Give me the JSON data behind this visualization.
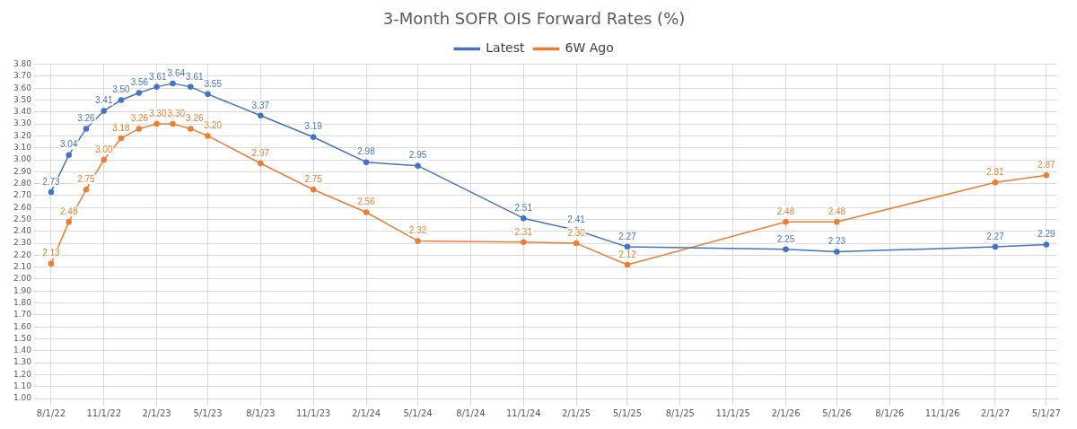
{
  "chart_data": {
    "type": "line",
    "title": "3-Month SOFR OIS Forward Rates (%)",
    "x": [
      "2022-08-01",
      "2022-09-01",
      "2022-10-01",
      "2022-11-01",
      "2022-12-01",
      "2023-01-01",
      "2023-02-01",
      "2023-03-01",
      "2023-04-01",
      "2023-05-01",
      "2023-08-01",
      "2023-11-01",
      "2024-02-01",
      "2024-05-01",
      "2024-11-01",
      "2025-02-01",
      "2025-05-01",
      "2026-02-01",
      "2026-05-01",
      "2027-02-01",
      "2027-05-01"
    ],
    "series": [
      {
        "name": "Latest",
        "color": "#4472c4",
        "values": [
          2.73,
          3.04,
          3.26,
          3.41,
          3.5,
          3.56,
          3.61,
          3.64,
          3.61,
          3.55,
          3.37,
          3.19,
          2.98,
          2.95,
          2.51,
          2.41,
          2.27,
          2.25,
          2.23,
          2.27,
          2.29
        ],
        "value_labels": [
          "2.73",
          "3.04",
          "3.26",
          "3.41",
          "3.50",
          "3.56",
          "3.61",
          "3.64",
          "3.61",
          "3.55",
          "3.37",
          "3.19",
          "2.98",
          "2.95",
          "2.51",
          "2.41",
          "2.27",
          "2.25",
          "2.23",
          "2.27",
          "2.29"
        ]
      },
      {
        "name": "6W Ago",
        "color": "#ed7d31",
        "values": [
          2.13,
          2.48,
          2.75,
          3.0,
          3.18,
          3.26,
          3.3,
          3.3,
          3.26,
          3.2,
          2.97,
          2.75,
          2.56,
          2.32,
          2.31,
          2.3,
          2.12,
          2.48,
          2.48,
          2.81,
          2.87
        ],
        "value_labels": [
          "2.13",
          "2.48",
          "2.75",
          "3.00",
          "3.18",
          "3.26",
          "3.30",
          "3.30",
          "3.26",
          "3.20",
          "2.97",
          "2.75",
          "2.56",
          "2.32",
          "2.31",
          "2.30",
          "2.12",
          "2.48",
          "2.48",
          "2.81",
          "2.87"
        ]
      }
    ],
    "xlim": [
      "2022-07-15",
      "2027-05-20"
    ],
    "xticks": [
      {
        "value": "2022-08-01",
        "label": "8/1/22"
      },
      {
        "value": "2022-11-01",
        "label": "11/1/22"
      },
      {
        "value": "2023-02-01",
        "label": "2/1/23"
      },
      {
        "value": "2023-05-01",
        "label": "5/1/23"
      },
      {
        "value": "2023-08-01",
        "label": "8/1/23"
      },
      {
        "value": "2023-11-01",
        "label": "11/1/23"
      },
      {
        "value": "2024-02-01",
        "label": "2/1/24"
      },
      {
        "value": "2024-05-01",
        "label": "5/1/24"
      },
      {
        "value": "2024-08-01",
        "label": "8/1/24"
      },
      {
        "value": "2024-11-01",
        "label": "11/1/24"
      },
      {
        "value": "2025-02-01",
        "label": "2/1/25"
      },
      {
        "value": "2025-05-01",
        "label": "5/1/25"
      },
      {
        "value": "2025-08-01",
        "label": "8/1/25"
      },
      {
        "value": "2025-11-01",
        "label": "11/1/25"
      },
      {
        "value": "2026-02-01",
        "label": "2/1/26"
      },
      {
        "value": "2026-05-01",
        "label": "5/1/26"
      },
      {
        "value": "2026-08-01",
        "label": "8/1/26"
      },
      {
        "value": "2026-11-01",
        "label": "11/1/26"
      },
      {
        "value": "2027-02-01",
        "label": "2/1/27"
      },
      {
        "value": "2027-05-01",
        "label": "5/1/27"
      }
    ],
    "ylim": [
      1.0,
      3.8
    ],
    "yticks": [
      {
        "value": 1.0,
        "label": "1.00"
      },
      {
        "value": 1.1,
        "label": "1.10"
      },
      {
        "value": 1.2,
        "label": "1.20"
      },
      {
        "value": 1.3,
        "label": "1.30"
      },
      {
        "value": 1.4,
        "label": "1.40"
      },
      {
        "value": 1.5,
        "label": "1.50"
      },
      {
        "value": 1.6,
        "label": "1.60"
      },
      {
        "value": 1.7,
        "label": "1.70"
      },
      {
        "value": 1.8,
        "label": "1.80"
      },
      {
        "value": 1.9,
        "label": "1.90"
      },
      {
        "value": 2.0,
        "label": "2.00"
      },
      {
        "value": 2.1,
        "label": "2.10"
      },
      {
        "value": 2.2,
        "label": "2.20"
      },
      {
        "value": 2.3,
        "label": "2.30"
      },
      {
        "value": 2.4,
        "label": "2.40"
      },
      {
        "value": 2.5,
        "label": "2.50"
      },
      {
        "value": 2.6,
        "label": "2.60"
      },
      {
        "value": 2.7,
        "label": "2.70"
      },
      {
        "value": 2.8,
        "label": "2.80"
      },
      {
        "value": 2.9,
        "label": "2.90"
      },
      {
        "value": 3.0,
        "label": "3.00"
      },
      {
        "value": 3.1,
        "label": "3.10"
      },
      {
        "value": 3.2,
        "label": "3.20"
      },
      {
        "value": 3.3,
        "label": "3.30"
      },
      {
        "value": 3.4,
        "label": "3.40"
      },
      {
        "value": 3.5,
        "label": "3.50"
      },
      {
        "value": 3.6,
        "label": "3.60"
      },
      {
        "value": 3.7,
        "label": "3.70"
      },
      {
        "value": 3.8,
        "label": "3.80"
      }
    ],
    "grid": true,
    "legend": "top",
    "marker": "circle",
    "line_style": "solid"
  }
}
